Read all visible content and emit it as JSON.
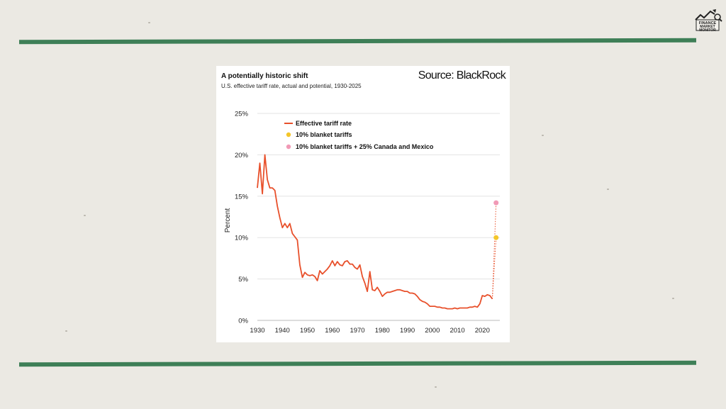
{
  "colors": {
    "background": "#ebe9e3",
    "accent_rule": "#3e7f57",
    "card": "#ffffff",
    "series_line": "#e8502b",
    "point_blanket": "#f4c62a",
    "point_blanket_canada_mexico": "#f19ab6",
    "gridline": "#e3e3e3"
  },
  "logo": {
    "icon": "finance-market-monitor-logo-icon",
    "text": "FINANCE MARKET MONITOR"
  },
  "card": {
    "title": "A potentially historic shift",
    "subtitle": "U.S. effective tariff rate, actual and potential, 1930-2025",
    "source": "Source: BlackRock"
  },
  "chart_data": {
    "type": "line",
    "title": "A potentially historic shift",
    "subtitle": "U.S. effective tariff rate, actual and potential, 1930-2025",
    "xlabel": "",
    "ylabel": "Percent",
    "xlim": [
      1930,
      2027
    ],
    "ylim": [
      0,
      25
    ],
    "x_ticks": [
      1930,
      1940,
      1950,
      1960,
      1970,
      1980,
      1990,
      2000,
      2010,
      2020
    ],
    "y_ticks": [
      0,
      5,
      10,
      15,
      20,
      25
    ],
    "y_tick_labels": [
      "0%",
      "5%",
      "10%",
      "15%",
      "20%",
      "25%"
    ],
    "grid": "horizontal",
    "legend_position": "top-left",
    "series": [
      {
        "name": "Effective tariff rate",
        "type": "line",
        "points": [
          [
            1930,
            16.0
          ],
          [
            1931,
            19.0
          ],
          [
            1932,
            15.3
          ],
          [
            1933,
            20.0
          ],
          [
            1934,
            17.0
          ],
          [
            1935,
            16.0
          ],
          [
            1936,
            16.0
          ],
          [
            1937,
            15.7
          ],
          [
            1938,
            13.8
          ],
          [
            1939,
            12.4
          ],
          [
            1940,
            11.2
          ],
          [
            1941,
            11.7
          ],
          [
            1942,
            11.2
          ],
          [
            1943,
            11.7
          ],
          [
            1944,
            10.5
          ],
          [
            1945,
            10.1
          ],
          [
            1946,
            9.7
          ],
          [
            1947,
            6.7
          ],
          [
            1948,
            5.2
          ],
          [
            1949,
            5.8
          ],
          [
            1950,
            5.5
          ],
          [
            1951,
            5.4
          ],
          [
            1952,
            5.5
          ],
          [
            1953,
            5.3
          ],
          [
            1954,
            4.8
          ],
          [
            1955,
            6.0
          ],
          [
            1956,
            5.6
          ],
          [
            1957,
            5.9
          ],
          [
            1958,
            6.2
          ],
          [
            1959,
            6.6
          ],
          [
            1960,
            7.2
          ],
          [
            1961,
            6.6
          ],
          [
            1962,
            7.1
          ],
          [
            1963,
            6.7
          ],
          [
            1964,
            6.6
          ],
          [
            1965,
            7.1
          ],
          [
            1966,
            7.2
          ],
          [
            1967,
            6.8
          ],
          [
            1968,
            6.8
          ],
          [
            1969,
            6.4
          ],
          [
            1970,
            6.2
          ],
          [
            1971,
            6.7
          ],
          [
            1972,
            5.3
          ],
          [
            1973,
            4.5
          ],
          [
            1974,
            3.5
          ],
          [
            1975,
            5.9
          ],
          [
            1976,
            3.7
          ],
          [
            1977,
            3.6
          ],
          [
            1978,
            4.0
          ],
          [
            1979,
            3.5
          ],
          [
            1980,
            2.9
          ],
          [
            1981,
            3.2
          ],
          [
            1982,
            3.4
          ],
          [
            1983,
            3.4
          ],
          [
            1984,
            3.5
          ],
          [
            1985,
            3.6
          ],
          [
            1986,
            3.7
          ],
          [
            1987,
            3.7
          ],
          [
            1988,
            3.6
          ],
          [
            1989,
            3.5
          ],
          [
            1990,
            3.5
          ],
          [
            1991,
            3.3
          ],
          [
            1992,
            3.3
          ],
          [
            1993,
            3.2
          ],
          [
            1994,
            2.9
          ],
          [
            1995,
            2.5
          ],
          [
            1996,
            2.3
          ],
          [
            1997,
            2.2
          ],
          [
            1998,
            2.0
          ],
          [
            1999,
            1.7
          ],
          [
            2000,
            1.7
          ],
          [
            2001,
            1.7
          ],
          [
            2002,
            1.6
          ],
          [
            2003,
            1.6
          ],
          [
            2004,
            1.5
          ],
          [
            2005,
            1.5
          ],
          [
            2006,
            1.4
          ],
          [
            2007,
            1.4
          ],
          [
            2008,
            1.4
          ],
          [
            2009,
            1.5
          ],
          [
            2010,
            1.4
          ],
          [
            2011,
            1.5
          ],
          [
            2012,
            1.5
          ],
          [
            2013,
            1.5
          ],
          [
            2014,
            1.5
          ],
          [
            2015,
            1.6
          ],
          [
            2016,
            1.6
          ],
          [
            2017,
            1.7
          ],
          [
            2018,
            1.6
          ],
          [
            2019,
            2.0
          ],
          [
            2020,
            3.0
          ],
          [
            2021,
            2.9
          ],
          [
            2022,
            3.1
          ],
          [
            2023,
            3.0
          ],
          [
            2024,
            2.6
          ]
        ]
      },
      {
        "name": "10% blanket tariffs",
        "type": "point",
        "points": [
          [
            2025.5,
            10.0
          ]
        ]
      },
      {
        "name": "10% blanket tariffs + 25% Canada and Mexico",
        "type": "point",
        "points": [
          [
            2025.5,
            14.2
          ]
        ]
      }
    ],
    "projection_lines": "dotted lines from 2024 value to each 2025 projected point"
  }
}
